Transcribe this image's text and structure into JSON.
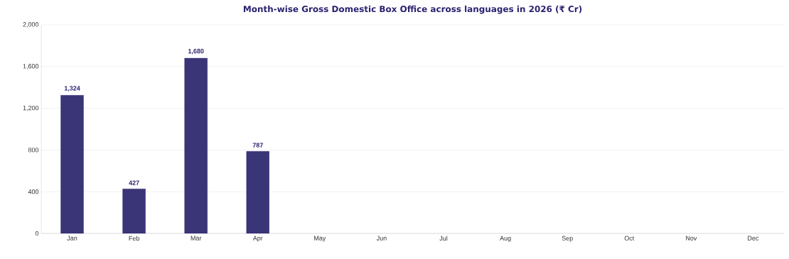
{
  "chart_data": {
    "type": "bar",
    "title": "Month-wise Gross Domestic Box Office across languages in 2026 (₹ Cr)",
    "categories": [
      "Jan",
      "Feb",
      "Mar",
      "Apr",
      "May",
      "Jun",
      "Jul",
      "Aug",
      "Sep",
      "Oct",
      "Nov",
      "Dec"
    ],
    "values": [
      1324,
      427,
      1680,
      787,
      null,
      null,
      null,
      null,
      null,
      null,
      null,
      null
    ],
    "color": "#3a3577",
    "ylim": [
      0,
      2000
    ],
    "yticks": [
      0,
      {
        "value": 400,
        "label": "400"
      },
      {
        "value": 800,
        "label": "800"
      },
      {
        "value": 1200,
        "label": "1,200"
      },
      {
        "value": 1600,
        "label": "1,600"
      },
      {
        "value": 2000,
        "label": "2,000"
      }
    ],
    "grid": "y",
    "value_labels": [
      "1,324",
      "427",
      "1,680",
      "787",
      null,
      null,
      null,
      null,
      null,
      null,
      null,
      null
    ]
  }
}
